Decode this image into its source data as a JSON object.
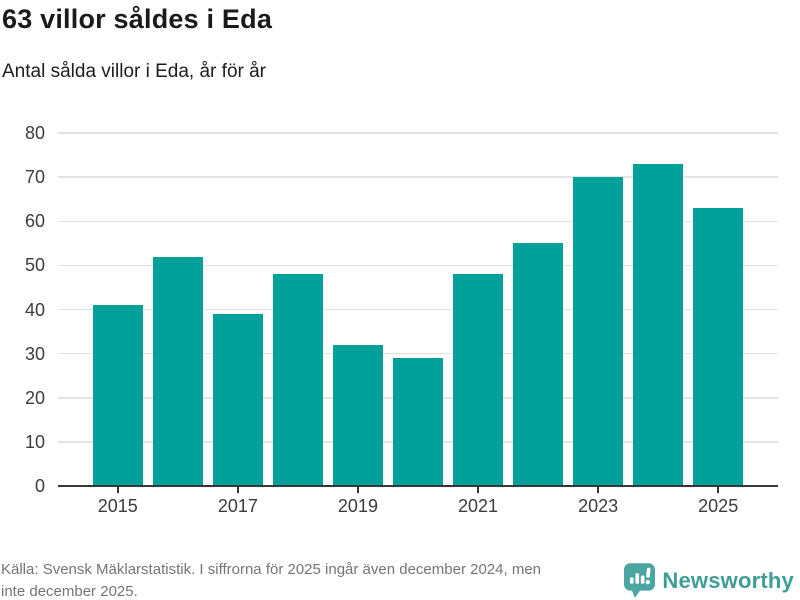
{
  "header": {
    "title": "63 villor såldes i Eda",
    "subtitle": "Antal sålda villor i Eda, år för år"
  },
  "chart_data": {
    "type": "bar",
    "categories": [
      "2015",
      "2016",
      "2017",
      "2018",
      "2019",
      "2020",
      "2021",
      "2022",
      "2023",
      "2024",
      "2025"
    ],
    "values": [
      41,
      52,
      39,
      48,
      32,
      29,
      48,
      55,
      70,
      73,
      63
    ],
    "title": "63 villor såldes i Eda",
    "subtitle": "Antal sålda villor i Eda, år för år",
    "xlabel": "",
    "ylabel": "",
    "ylim": [
      0,
      80
    ],
    "y_ticks": [
      0,
      10,
      20,
      30,
      40,
      50,
      60,
      70,
      80
    ],
    "x_tick_labels": [
      "2015",
      "2017",
      "2019",
      "2021",
      "2023",
      "2025"
    ],
    "grid": "horizontal-only",
    "legend": "none",
    "bar_color": "#00a19a"
  },
  "footer": {
    "source_lines": [
      "Källa: Svensk Mäklarstatistik. I siffrorna för 2025 ingår även december 2024, men",
      "inte december 2025."
    ],
    "brand": "Newsworthy",
    "brand_color": "#3f9d98",
    "icon_color": "#4aa6a1"
  }
}
